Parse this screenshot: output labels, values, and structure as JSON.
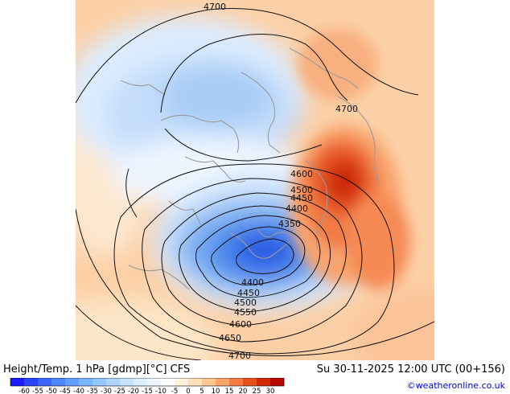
{
  "map": {
    "contour_labels": [
      {
        "text": "4700"
      },
      {
        "text": "4700"
      },
      {
        "text": "4600"
      },
      {
        "text": "4500"
      },
      {
        "text": "4450"
      },
      {
        "text": "4400"
      },
      {
        "text": "4350"
      },
      {
        "text": "4400"
      },
      {
        "text": "4450"
      },
      {
        "text": "4500"
      },
      {
        "text": "4550"
      },
      {
        "text": "4600"
      },
      {
        "text": "4650"
      },
      {
        "text": "4700"
      }
    ]
  },
  "footer": {
    "title": "Height/Temp. 1 hPa [gdmp][°C] CFS",
    "datetime": "Su 30-11-2025 12:00 UTC (00+156)",
    "credit": "©weatheronline.co.uk"
  },
  "colorbar": {
    "ticks": [
      "-60",
      "-55",
      "-50",
      "-45",
      "-40",
      "-35",
      "-30",
      "-25",
      "-20",
      "-15",
      "-10",
      "-5",
      "0",
      "5",
      "10",
      "15",
      "20",
      "25",
      "30"
    ],
    "colors": [
      "#1a1aff",
      "#2a45ff",
      "#3a66ff",
      "#4a86ff",
      "#5fa0ff",
      "#78b4ff",
      "#92c6ff",
      "#acd6ff",
      "#c6e4ff",
      "#dceeff",
      "#f0f6ff",
      "#ffffff",
      "#fff2dc",
      "#fde0b8",
      "#fcc690",
      "#f9a468",
      "#f47c40",
      "#e8501e",
      "#d42a0a",
      "#b80a00"
    ]
  }
}
